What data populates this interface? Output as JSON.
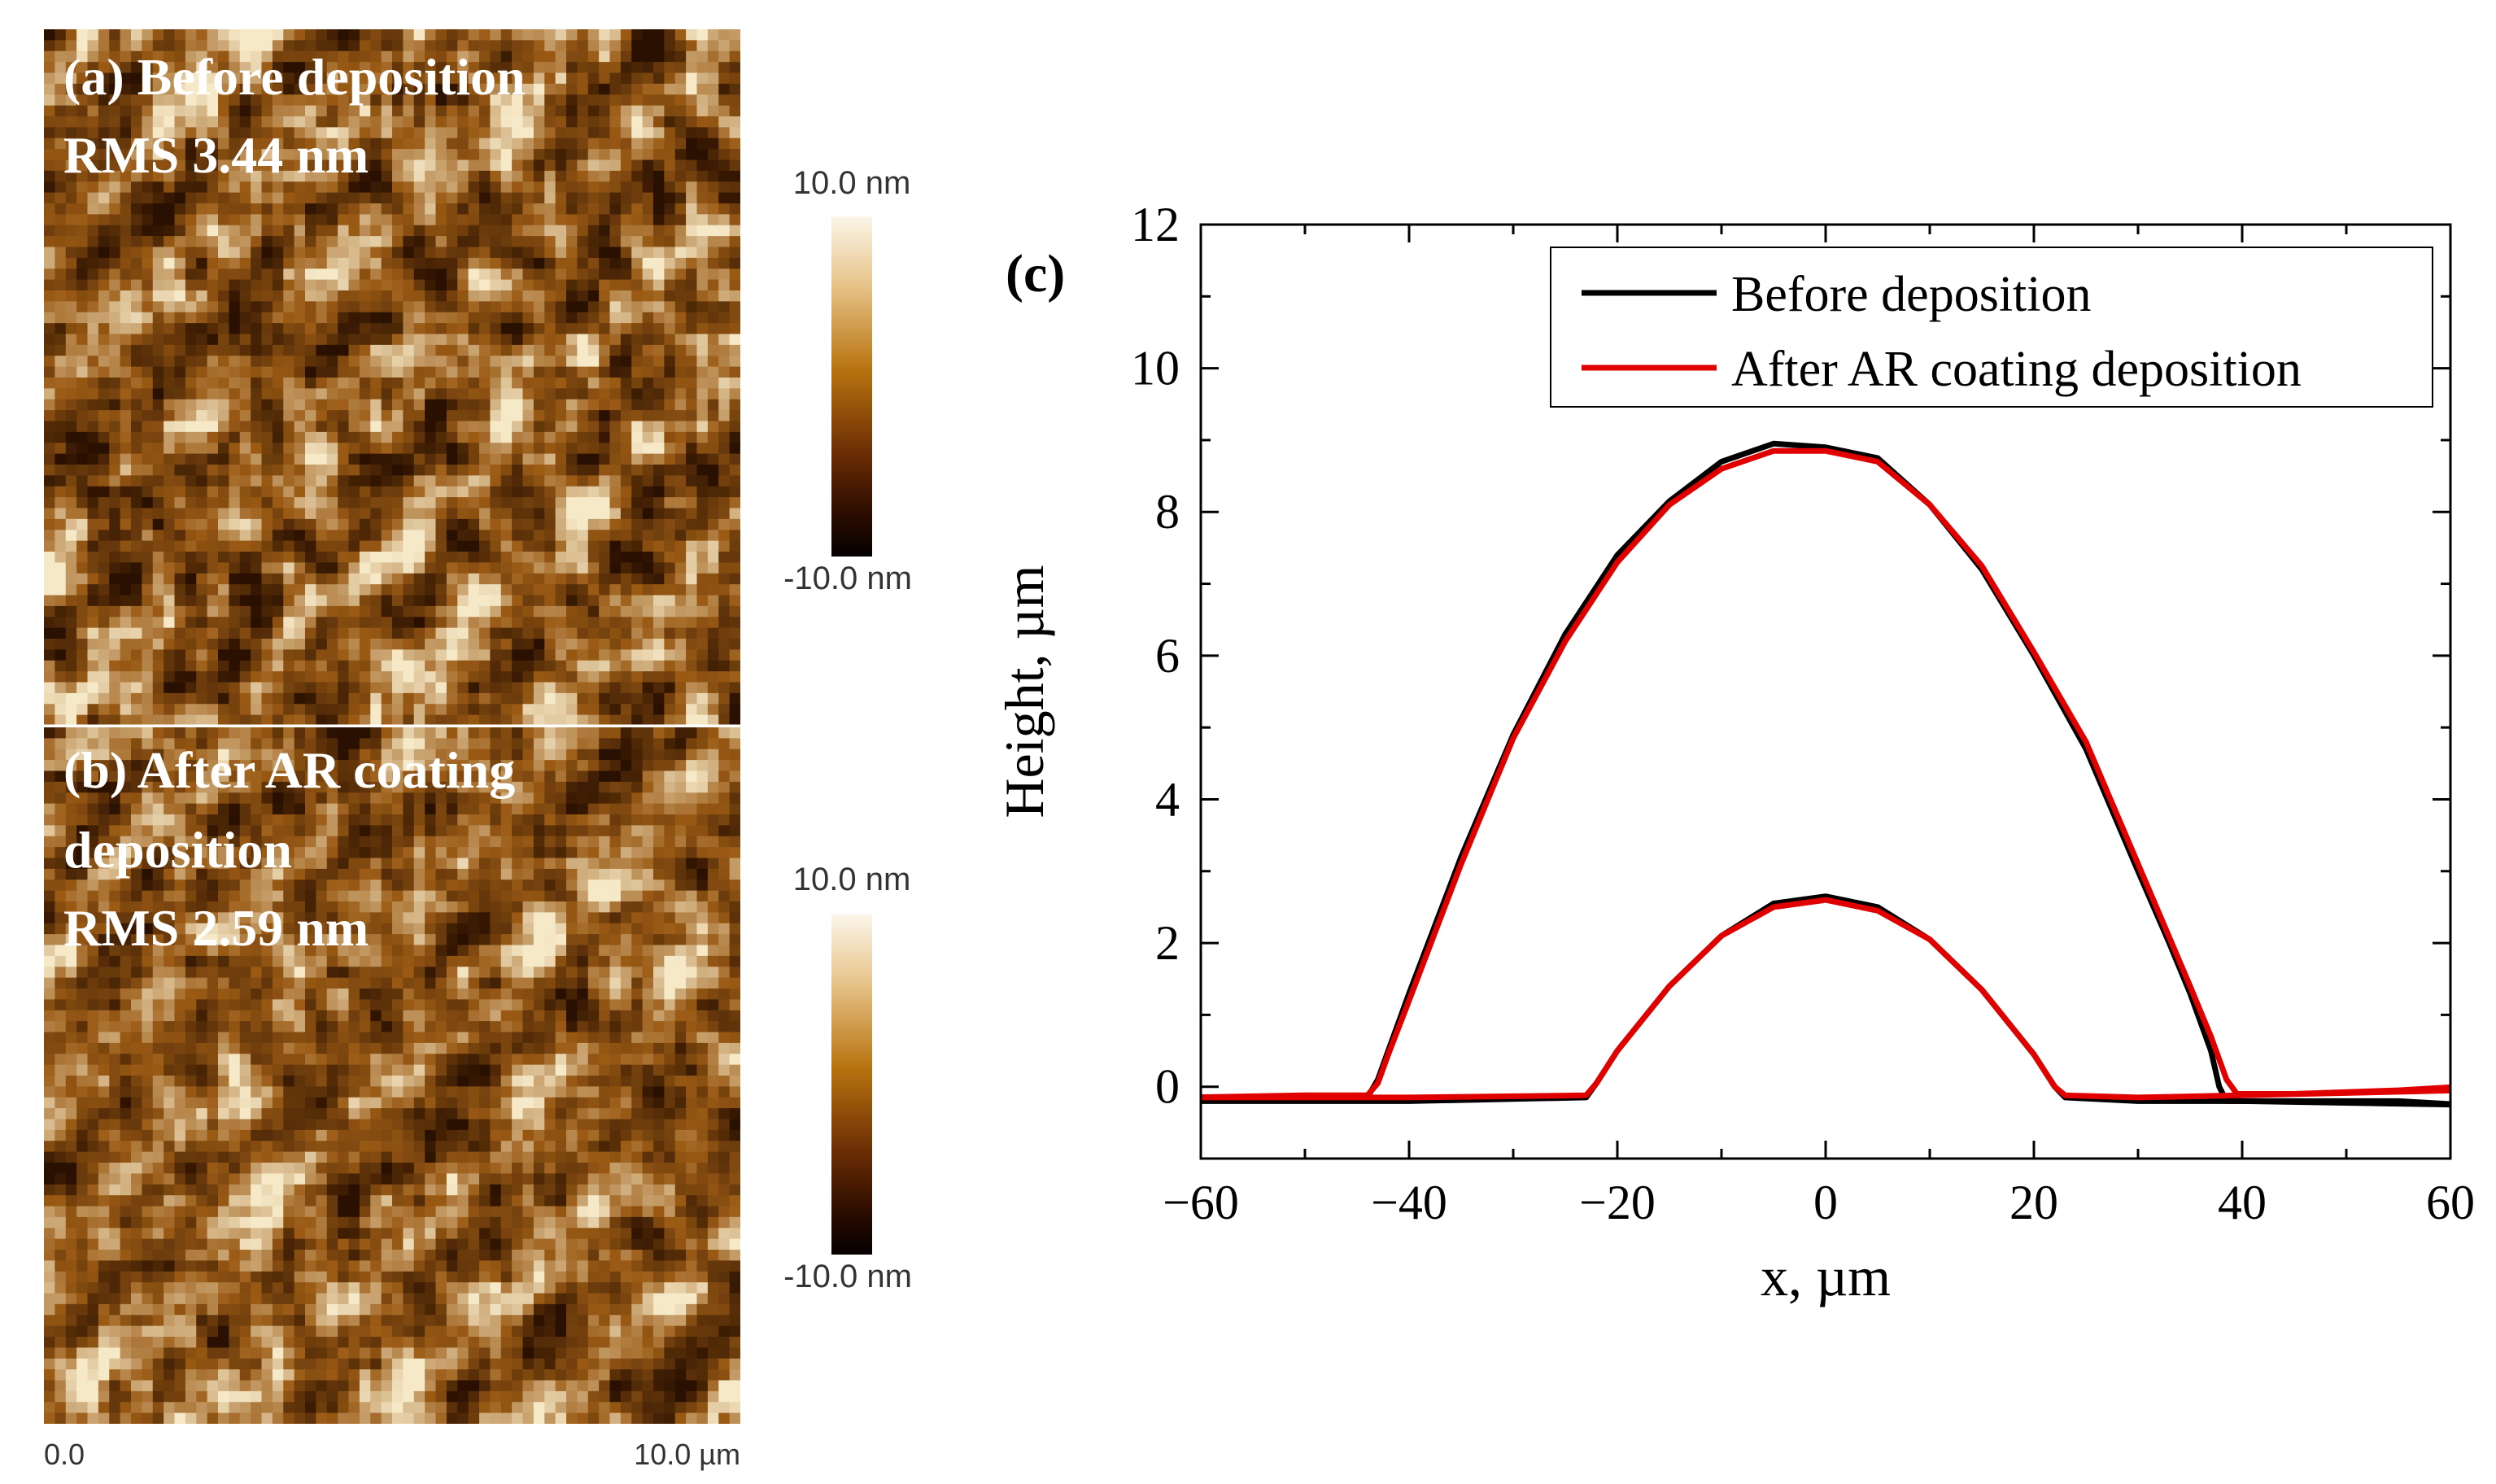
{
  "afm_panels": [
    {
      "id": "a",
      "label_line1": "(a) Before  deposition",
      "label_line2": "RMS 3.44 nm",
      "colorbar_max": "10.0 nm",
      "colorbar_min": "-10.0 nm"
    },
    {
      "id": "b",
      "label_line1": "(b) After AR coating",
      "label_line2": "deposition",
      "label_line3": "RMS 2.59 nm",
      "colorbar_max": "10.0 nm",
      "colorbar_min": "-10.0 nm"
    }
  ],
  "afm_scale": {
    "start": "0.0",
    "end": "10.0 µm"
  },
  "colors": {
    "afm_dark": "#2a1000",
    "afm_mid": "#9a5a14",
    "afm_light": "#f6e9c8",
    "before": "#000000",
    "after": "#e00000"
  },
  "chart_data": {
    "type": "line",
    "panel_label": "(c)",
    "xlabel": "x, µm",
    "ylabel": "Height, µm",
    "xlim": [
      -60,
      60
    ],
    "ylim": [
      -1,
      12
    ],
    "xticks": [
      -60,
      -40,
      -20,
      0,
      20,
      40,
      60
    ],
    "xtick_labels": [
      "−60",
      "−40",
      "−20",
      "0",
      "20",
      "40",
      "60"
    ],
    "yticks": [
      0,
      2,
      4,
      6,
      8,
      10,
      12
    ],
    "ytick_labels": [
      "0",
      "2",
      "4",
      "6",
      "8",
      "10",
      "12"
    ],
    "legend_position": "top-right",
    "series": [
      {
        "name": "Before deposition",
        "color": "#000000",
        "profiles": [
          {
            "x": [
              -61,
              -50,
              -44,
              -43,
              -42,
              -40,
              -35,
              -30,
              -25,
              -20,
              -15,
              -10,
              -5,
              0,
              5,
              10,
              15,
              20,
              25,
              30,
              33,
              35,
              37,
              37.8,
              38.5,
              45,
              55,
              61
            ],
            "y": [
              -0.2,
              -0.15,
              -0.15,
              0.1,
              0.5,
              1.3,
              3.2,
              4.9,
              6.3,
              7.4,
              8.15,
              8.7,
              8.95,
              8.9,
              8.75,
              8.1,
              7.2,
              6.0,
              4.7,
              3.0,
              2.0,
              1.3,
              0.5,
              0.0,
              -0.2,
              -0.2,
              -0.2,
              -0.25
            ]
          },
          {
            "x": [
              -61,
              -40,
              -23,
              -22,
              -20,
              -15,
              -10,
              -5,
              0,
              5,
              10,
              15,
              20,
              22,
              23,
              30,
              40,
              61
            ],
            "y": [
              -0.2,
              -0.2,
              -0.15,
              0.05,
              0.5,
              1.4,
              2.1,
              2.55,
              2.65,
              2.5,
              2.05,
              1.35,
              0.45,
              0.0,
              -0.15,
              -0.2,
              -0.2,
              -0.25
            ]
          }
        ]
      },
      {
        "name": "After AR coating deposition",
        "color": "#e00000",
        "profiles": [
          {
            "x": [
              -61,
              -50,
              -44,
              -43,
              -42,
              -40,
              -35,
              -30,
              -25,
              -20,
              -15,
              -10,
              -5,
              0,
              5,
              10,
              15,
              20,
              25,
              30,
              35,
              37,
              38.5,
              39.5,
              45,
              55,
              61
            ],
            "y": [
              -0.15,
              -0.12,
              -0.12,
              0.05,
              0.45,
              1.2,
              3.1,
              4.85,
              6.2,
              7.3,
              8.1,
              8.6,
              8.85,
              8.85,
              8.7,
              8.1,
              7.25,
              6.05,
              4.8,
              3.1,
              1.4,
              0.7,
              0.1,
              -0.1,
              -0.1,
              -0.05,
              0.0
            ]
          },
          {
            "x": [
              -61,
              -40,
              -23,
              -22,
              -20,
              -15,
              -10,
              -5,
              0,
              5,
              10,
              15,
              20,
              22,
              23,
              30,
              40,
              61
            ],
            "y": [
              -0.15,
              -0.15,
              -0.12,
              0.05,
              0.5,
              1.4,
              2.1,
              2.5,
              2.6,
              2.45,
              2.05,
              1.35,
              0.45,
              0.0,
              -0.12,
              -0.15,
              -0.12,
              -0.05
            ]
          }
        ]
      }
    ]
  }
}
